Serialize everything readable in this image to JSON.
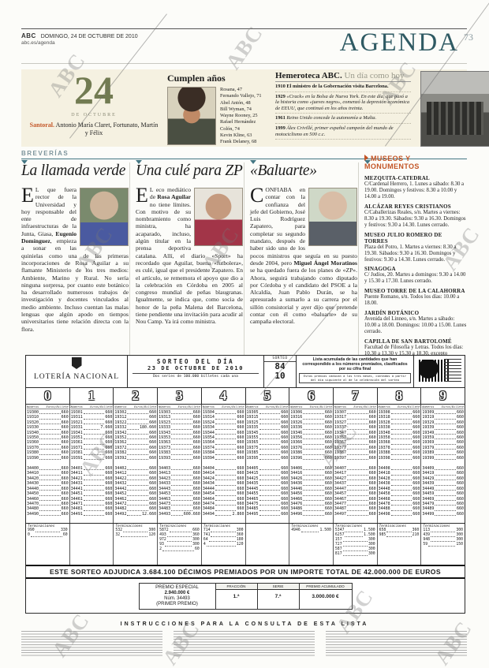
{
  "page": {
    "watermark": "ABC"
  },
  "masthead": {
    "brand": "ABC",
    "date_line": "DOMINGO, 24 DE OCTUBRE DE 2010",
    "url": "abc.es/agenda",
    "section_title": "AGENDA",
    "page_number": "73"
  },
  "date_block": {
    "day": "24",
    "month_label": "DE OCTUBRE",
    "santoral_label": "Santoral.",
    "santoral_names": " Antonio María Claret, Fortunato, Martín y Félix"
  },
  "birthdays": {
    "title": "Cumplen años",
    "people": [
      "Rosana, 47",
      "Fernando Vallejo, 71",
      "Abel Antón, 48",
      "Bill Wyman, 74",
      "Wayne Rooney, 25",
      "Rafael Hernández",
      "Colón, 74",
      "Kevin Kline, 63",
      "Frank Delaney, 68"
    ]
  },
  "hemeroteca": {
    "title": "Hemeroteca ABC.",
    "subtitle": " Un día como hoy",
    "entries": [
      {
        "year": "1910",
        "text": " El ministro de la Gobernación visita Barcelona.",
        "style": "bold"
      },
      {
        "year": "1929",
        "text": " «Crack» en la Bolsa de Nueva York. En este día, que pasó a la historia como «jueves negro», comenzó la depresión económica de EEUU, que continuó en los años treinta.",
        "style": "italic"
      },
      {
        "year": "1961",
        "text": " Reino Unido concede la autonomía a Malta.",
        "style": "italic"
      },
      {
        "year": "1999",
        "text": " Álex Crivillé, primer español campeón del mundo de motociclismo en 500 c.c.",
        "style": "italic"
      }
    ]
  },
  "breverias": {
    "label": "BREVERÍAS",
    "articles": [
      {
        "headline": "La llamada verde",
        "body": "EL que fuera rector de la Universidad y hoy responsable del ente de infraestructuras de la Junta, Giasa, **Eugenio Domínguez**, empieza a sonar en las quinielas como una de las primeras incorporaciones de Rosa Aguilar a su flamante Ministerio de los tres medios: Ambiente, Marino y Rural. No sería ninguna sorpresa, por cuanto este botánico ha desarrollado numerosos trabajos de investigación y docentes vinculados al medio ambiente. Incluso cuentan las malas lenguas que algún apodo en tiempos universitarios tiene relación directa con la flora."
      },
      {
        "headline": "Una culé para ZP",
        "body": "EL eco mediático de **Rosa Aguilar** no tiene límites. Con motivo de su nombramiento como ministra, ha acaparado, incluso, algún titular en la prensa deportiva catalana. Allí, el diario «Sport» ha recordado que Aguilar, buena «futbolera», es culé, igual que el presidente Zapatero. En el artículo, se rememora el apoyo que dio a la celebración en Córdoba en 2005 al congreso mundial de peñas blaugranas. Igualmente, se indica que, como socia de honor de la peña Malena del Barcelona, tiene pendiente una invitación para acudir al Nou Camp. Ya irá como ministra."
      },
      {
        "headline": "«Baluarte»",
        "body": "CONFIABA en contar con la confianza del jefe del Gobierno, José Luis Rodríguez Zapatero, para completar su segundo mandato, después de haber sido uno de los pocos ministros que seguía en su puesto desde 2004, pero **Miguel Ángel Moratinos** se ha quedado fuera de los planes de «ZP». Ahora, seguirá trabajando como diputado por Córdoba y el candidato del PSOE a la Alcaldía, Juan Pablo Durán, se ha apresurado a sumarlo a su carrera por el sillón consistorial y ayer dijo que pretende contar con él como «baluarte» de su campaña electoral."
      }
    ]
  },
  "museums": {
    "title": "MUSEOS Y MONUMENTOS",
    "entries": [
      {
        "name": "MEZQUITA-CATEDRAL",
        "info": "C/Cardenal Herrero, 1. Lunes a sábado: 8.30 a 19.00. Domingos y festivos: 8.30 a 10.00 y 14.00 a 19.00."
      },
      {
        "name": "ALCÁZAR REYES CRISTIANOS",
        "info": "C/Caballerizas Reales, s/n. Martes a viernes: 8.30 a 19.30. Sábados: 9.30 a 16.30. Domingos y festivos: 9.30 a 14.30. Lunes cerrado."
      },
      {
        "name": "MUSEO JULIO ROMERO DE TORRES",
        "info": "Plaza del Potro, 1. Martes a viernes: 8.30 a 19.30. Sábados: 9.30 a 16.30. Domingos y festivos: 9.30 a 14.30. Lunes cerrado."
      },
      {
        "name": "SINAGOGA",
        "info": "C/ Judíos, 20. Martes a domingos: 9.30 a 14.00 y 15.30 a 17.30. Lunes cerrado."
      },
      {
        "name": "MUSEO TORRE DE LA CALAHORRA",
        "info": "Puente Romano, s/n. Todos los días: 10.00 a 18.00."
      },
      {
        "name": "JARDÍN BOTÁNICO",
        "info": "Avenida del Linneo, s/n. Martes a sábado: 10.00 a 18.00. Domingos: 10.00 a 15.00. Lunes cerrado."
      },
      {
        "name": "CAPILLA DE SAN BARTOLOMÉ",
        "info": "Facultad de Filosofía y Letras. Todos los días: 10.30 a 13.30 y 15.30 a 18.30, excepto domingos y festivos tarde y lunes mañana."
      }
    ]
  },
  "lottery": {
    "brand": "LOTERÍA NACIONAL",
    "draw_title": "SORTEO DEL DÍA",
    "draw_date": "23 DE OCTUBRE DE 2010",
    "series_note": "Dos series de 100.000 billetes cada una",
    "sorteo_label": "SORTEO",
    "sorteo_number": "84",
    "sorteo_year": "10",
    "list_note": "Lista acumulada de las cantidades que han correspondido a los números premiados, clasificados por su cifra final",
    "expiry_note": "Estos premios caducan a los tres meses, contados a partir del día siguiente al de la celebración del sorteo",
    "digits": [
      "0",
      "1",
      "2",
      "3",
      "4",
      "5",
      "6",
      "7",
      "8",
      "9"
    ],
    "col_header_left": "Números",
    "col_header_right": "Euros/Billete",
    "default_prize": "660",
    "blocks": [
      {
        "row_prefixes": [
          "1930",
          "1931",
          "1932",
          "1933",
          "1934",
          "1935",
          "1936",
          "1937",
          "1938",
          "1939"
        ]
      },
      {
        "row_prefixes": [
          "3440",
          "3441",
          "3442",
          "3443",
          "3444",
          "3445",
          "3446",
          "3447",
          "3448",
          "3449"
        ]
      }
    ],
    "special_prizes": {
      "19331": "7.660",
      "19332": "180.660",
      "34492": "12.660",
      "34493": "600.660",
      "34494": "2.860"
    },
    "terminaciones_label": "Terminaciones",
    "terminaciones": [
      [
        [
          "990",
          "330"
        ],
        [
          "0",
          "60"
        ]
      ],
      [],
      [
        [
          "532",
          "300"
        ],
        [
          "32",
          "120"
        ]
      ],
      [
        [
          "5872",
          "660"
        ],
        [
          "493",
          "360"
        ],
        [
          "972",
          "300"
        ],
        [
          "93",
          "300"
        ],
        [
          "2",
          "60"
        ]
      ],
      [
        [
          "714",
          "300"
        ],
        [
          "741",
          "360"
        ],
        [
          "64",
          "180"
        ],
        [
          "4",
          "120"
        ]
      ],
      [],
      [
        [
          "4946",
          "1.500"
        ]
      ],
      [
        [
          "5347",
          "1.500"
        ],
        [
          "6257",
          "1.500"
        ],
        [
          "157",
          "300"
        ],
        [
          "727",
          "300"
        ],
        [
          "587",
          "300"
        ],
        [
          "817",
          "300"
        ]
      ],
      [
        [
          "658",
          "360"
        ],
        [
          "985",
          "210"
        ]
      ],
      [
        [
          "113",
          "300"
        ],
        [
          "439",
          "300"
        ],
        [
          "948",
          "300"
        ],
        [
          "59",
          "150"
        ]
      ]
    ],
    "banner": "ESTE SORTEO ADJUDICA 3.684.100 DÉCIMOS PREMIADOS POR UN IMPORTE TOTAL DE 42.000.000 DE EUROS",
    "premio_especial": {
      "label": "PREMIO ESPECIAL",
      "amount": "2.940.000 €",
      "num_label": "Núm. 34493",
      "sub_label": "(PRIMER PREMIO)",
      "col_fraccion": "FRACCIÓN",
      "col_serie": "SERIE",
      "col_acumulado": "PREMIO ACUMULADO",
      "fraccion": "1.ª",
      "serie": "7.ª",
      "acumulado": "3.000.000 €"
    },
    "instructions_title": "INSTRUCCIONES PARA LA CONSULTA DE ESTA LISTA"
  }
}
